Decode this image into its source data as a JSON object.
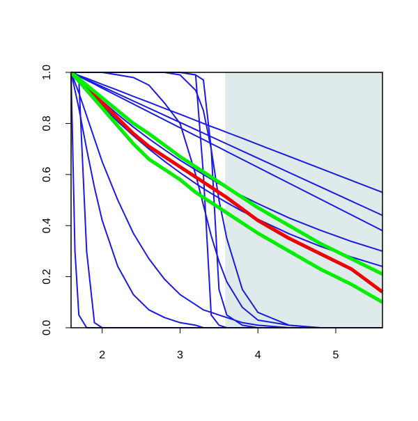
{
  "chart_data": {
    "type": "line",
    "xlim": [
      1.6,
      5.6
    ],
    "ylim": [
      0,
      1
    ],
    "xticks": [
      2,
      3,
      4,
      5
    ],
    "yticks": [
      {
        "value": 0,
        "label": "0.0"
      },
      0.2,
      0.4,
      0.6,
      0.8,
      {
        "value": 1,
        "label": "1.0"
      }
    ],
    "shaded_xrange": [
      3.58,
      5.6
    ],
    "shade_color": "#deebea",
    "x": [
      1.6,
      1.65,
      1.7,
      1.8,
      1.9,
      2.0,
      2.2,
      2.4,
      2.6,
      2.8,
      3.0,
      3.2,
      3.3,
      3.4,
      3.5,
      3.6,
      3.8,
      4.0,
      4.4,
      4.8,
      5.2,
      5.6
    ],
    "series": [
      {
        "color": "#1a1ae0",
        "values": [
          1,
          0.994,
          0.988,
          0.977,
          0.965,
          0.953,
          0.93,
          0.906,
          0.883,
          0.859,
          0.836,
          0.812,
          0.8,
          0.788,
          0.777,
          0.765,
          0.742,
          0.718,
          0.671,
          0.624,
          0.577,
          0.53
        ]
      },
      {
        "color": "#1a1ae0",
        "values": [
          1,
          0.993,
          0.986,
          0.972,
          0.958,
          0.944,
          0.916,
          0.888,
          0.86,
          0.832,
          0.804,
          0.776,
          0.762,
          0.748,
          0.734,
          0.72,
          0.692,
          0.664,
          0.608,
          0.552,
          0.496,
          0.44
        ]
      },
      {
        "color": "#1a1ae0",
        "values": [
          1,
          0.985,
          0.97,
          0.942,
          0.914,
          0.887,
          0.835,
          0.786,
          0.74,
          0.697,
          0.656,
          0.618,
          0.6,
          0.582,
          0.564,
          0.548,
          0.516,
          0.486,
          0.43,
          0.382,
          0.338,
          0.3
        ]
      },
      {
        "color": "#1a1ae0",
        "values": [
          1,
          0.982,
          0.965,
          0.931,
          0.899,
          0.867,
          0.807,
          0.752,
          0.7,
          0.652,
          0.607,
          0.565,
          0.545,
          0.526,
          0.508,
          0.49,
          0.456,
          0.425,
          0.368,
          0.319,
          0.277,
          0.24
        ]
      },
      {
        "color": "#1a1ae0",
        "values": [
          1,
          0.992,
          0.985,
          0.969,
          0.954,
          0.938,
          0.907,
          0.876,
          0.845,
          0.814,
          0.783,
          0.752,
          0.737,
          0.721,
          0.706,
          0.69,
          0.659,
          0.628,
          0.566,
          0.504,
          0.442,
          0.38
        ]
      },
      {
        "color": "#1a1ae0",
        "values": [
          1,
          1,
          1,
          1,
          1,
          1,
          1,
          1,
          1,
          1,
          1,
          0.99,
          0.6,
          0.05,
          0.01,
          0,
          0,
          0,
          0,
          0,
          0,
          0
        ]
      },
      {
        "color": "#1a1ae0",
        "values": [
          1,
          1,
          1,
          1,
          1,
          1,
          1,
          1,
          1,
          1,
          1,
          0.99,
          0.97,
          0.7,
          0.15,
          0.05,
          0.01,
          0,
          0,
          0,
          0,
          0
        ]
      },
      {
        "color": "#1a1ae0",
        "values": [
          1,
          1,
          1,
          1,
          1,
          1,
          1,
          1,
          1,
          1,
          0.99,
          0.93,
          0.85,
          0.7,
          0.5,
          0.35,
          0.15,
          0.06,
          0.01,
          0,
          0,
          0
        ]
      },
      {
        "color": "#1a1ae0",
        "values": [
          1,
          1,
          1,
          1,
          1,
          1,
          0.99,
          0.98,
          0.95,
          0.88,
          0.8,
          0.6,
          0.48,
          0.36,
          0.26,
          0.18,
          0.08,
          0.03,
          0.01,
          0,
          0,
          0
        ]
      },
      {
        "color": "#1a1ae0",
        "values": [
          1,
          0.3,
          0.05,
          0,
          0,
          0,
          0,
          0,
          0,
          0,
          0,
          0,
          0,
          0,
          0,
          0,
          0,
          0,
          0,
          0,
          0,
          0
        ]
      },
      {
        "color": "#1a1ae0",
        "values": [
          1,
          1,
          0.97,
          0.3,
          0.02,
          0,
          0,
          0,
          0,
          0,
          0,
          0,
          0,
          0,
          0,
          0,
          0,
          0,
          0,
          0,
          0,
          0
        ]
      },
      {
        "color": "#1a1ae0",
        "values": [
          1,
          0.93,
          0.86,
          0.7,
          0.55,
          0.42,
          0.24,
          0.13,
          0.07,
          0.04,
          0.02,
          0.01,
          0,
          0,
          0,
          0,
          0,
          0,
          0,
          0,
          0,
          0
        ]
      },
      {
        "color": "#1a1ae0",
        "values": [
          1,
          0.96,
          0.92,
          0.83,
          0.74,
          0.65,
          0.5,
          0.37,
          0.27,
          0.19,
          0.13,
          0.09,
          0.07,
          0.06,
          0.05,
          0.04,
          0.02,
          0.01,
          0,
          0,
          0,
          0
        ]
      },
      {
        "color": "#ee0000",
        "values": [
          1,
          0.985,
          0.97,
          0.94,
          0.91,
          0.88,
          0.82,
          0.76,
          0.71,
          0.67,
          0.63,
          0.59,
          0.57,
          0.55,
          0.53,
          0.51,
          0.465,
          0.42,
          0.35,
          0.29,
          0.23,
          0.14
        ]
      },
      {
        "color": "#00ee00",
        "values": [
          1,
          0.987,
          0.975,
          0.95,
          0.925,
          0.9,
          0.85,
          0.8,
          0.76,
          0.715,
          0.67,
          0.63,
          0.61,
          0.59,
          0.57,
          0.55,
          0.51,
          0.47,
          0.4,
          0.33,
          0.27,
          0.21
        ]
      },
      {
        "color": "#00ee00",
        "values": [
          1,
          0.982,
          0.965,
          0.93,
          0.895,
          0.86,
          0.79,
          0.72,
          0.66,
          0.62,
          0.58,
          0.53,
          0.51,
          0.49,
          0.47,
          0.45,
          0.41,
          0.37,
          0.3,
          0.23,
          0.17,
          0.1
        ]
      }
    ]
  }
}
